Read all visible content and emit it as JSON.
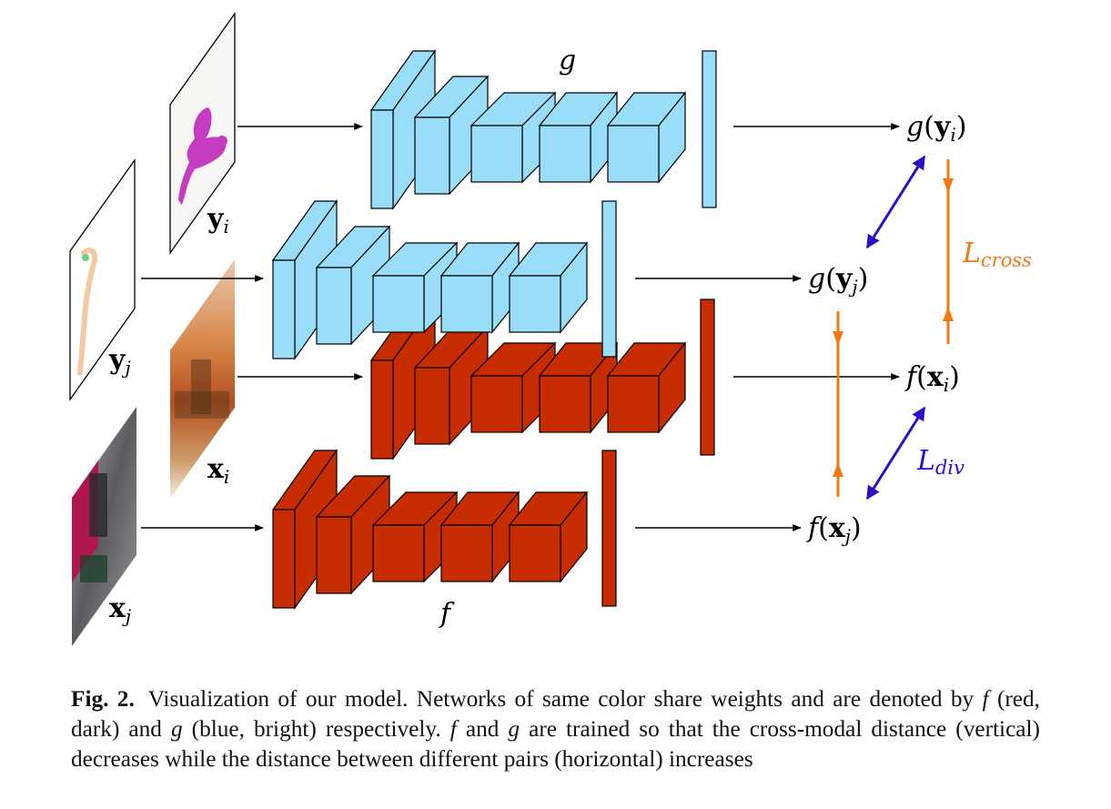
{
  "diagram": {
    "inputs": {
      "yi": {
        "label_main": "y",
        "label_sub": "i"
      },
      "yj": {
        "label_main": "y",
        "label_sub": "j"
      },
      "xi": {
        "label_main": "x",
        "label_sub": "i"
      },
      "xj": {
        "label_main": "x",
        "label_sub": "j"
      }
    },
    "networks": {
      "g": {
        "label": "g",
        "color": "#99DDF9"
      },
      "f": {
        "label": "f",
        "color": "#C82D02"
      }
    },
    "outputs": {
      "g_yi": {
        "fn": "g",
        "arg_main": "y",
        "arg_sub": "i"
      },
      "g_yj": {
        "fn": "g",
        "arg_main": "y",
        "arg_sub": "j"
      },
      "f_xi": {
        "fn": "f",
        "arg_main": "x",
        "arg_sub": "i"
      },
      "f_xj": {
        "fn": "f",
        "arg_main": "x",
        "arg_sub": "j"
      }
    },
    "losses": {
      "cross": {
        "main": "L",
        "sub": "cross",
        "color": "#F07A10"
      },
      "div": {
        "main": "L",
        "sub": "div",
        "color": "#2A10C8"
      }
    }
  },
  "caption": {
    "label": "Fig. 2.",
    "seg1": "Visualization of our model. Networks of same color share weights and are denoted by",
    "var_f": "f",
    "seg2": "(red, dark) and",
    "var_g": "g",
    "seg3": "(blue, bright) respectively.",
    "var_f2": "f",
    "seg4": "and",
    "var_g2": "g",
    "seg5": "are trained so that the cross-modal distance (vertical) decreases while the distance between different pairs (horizontal) increases"
  }
}
